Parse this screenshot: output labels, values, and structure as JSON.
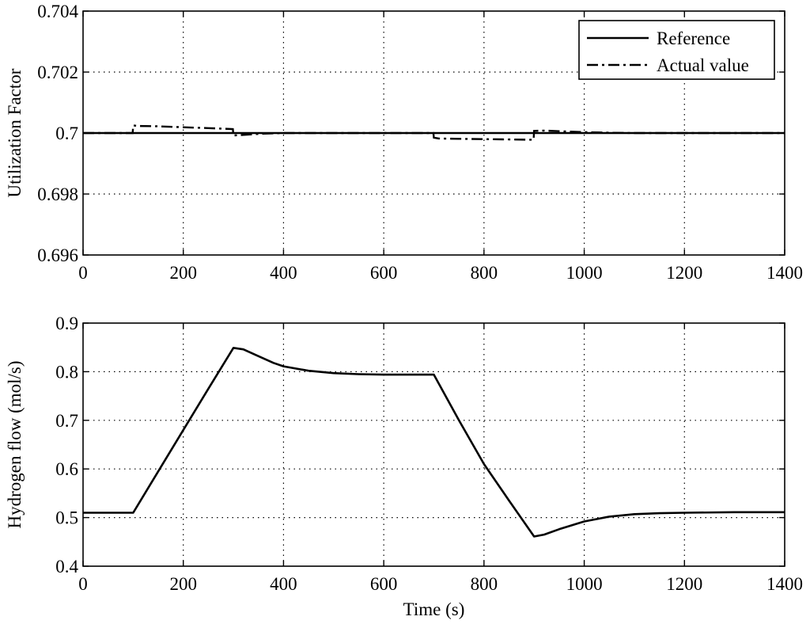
{
  "chart_data": [
    {
      "type": "line",
      "title": "",
      "xlabel": "",
      "ylabel": "Utilization Factor",
      "xlim": [
        0,
        1400
      ],
      "ylim": [
        0.696,
        0.704
      ],
      "xticks": [
        0,
        200,
        400,
        600,
        800,
        1000,
        1200,
        1400
      ],
      "xtick_labels": [
        "0",
        "200",
        "400",
        "600",
        "800",
        "1000",
        "1200",
        "1400"
      ],
      "yticks": [
        0.696,
        0.698,
        0.7,
        0.702,
        0.704
      ],
      "ytick_labels": [
        "0.696",
        "0.698",
        "0.7",
        "0.702",
        "0.704"
      ],
      "grid": true,
      "legend_position": "top-right",
      "series": [
        {
          "name": "Reference",
          "style": "solid",
          "x": [
            0,
            1400
          ],
          "y": [
            0.7,
            0.7
          ]
        },
        {
          "name": "Actual value",
          "style": "dash-dot",
          "x": [
            0,
            99,
            100,
            110,
            150,
            200,
            250,
            299,
            300,
            330,
            360,
            400,
            450,
            500,
            600,
            699,
            700,
            710,
            750,
            800,
            850,
            899,
            900,
            920,
            950,
            1000,
            1050,
            1100,
            1200,
            1300,
            1400
          ],
          "y": [
            0.7,
            0.7,
            0.70025,
            0.70023,
            0.70022,
            0.70019,
            0.70016,
            0.70013,
            0.69992,
            0.69995,
            0.69998,
            0.7,
            0.7,
            0.7,
            0.7,
            0.7,
            0.69985,
            0.69982,
            0.69981,
            0.6998,
            0.69979,
            0.69978,
            0.70007,
            0.70008,
            0.70006,
            0.70003,
            0.70001,
            0.7,
            0.7,
            0.7,
            0.7
          ]
        }
      ]
    },
    {
      "type": "line",
      "title": "",
      "xlabel": "Time (s)",
      "ylabel": "Hydrogen flow (mol/s)",
      "xlim": [
        0,
        1400
      ],
      "ylim": [
        0.4,
        0.9
      ],
      "xticks": [
        0,
        200,
        400,
        600,
        800,
        1000,
        1200,
        1400
      ],
      "xtick_labels": [
        "0",
        "200",
        "400",
        "600",
        "800",
        "1000",
        "1200",
        "1400"
      ],
      "yticks": [
        0.4,
        0.5,
        0.6,
        0.7,
        0.8,
        0.9
      ],
      "ytick_labels": [
        "0.4",
        "0.5",
        "0.6",
        "0.7",
        "0.8",
        "0.9"
      ],
      "grid": true,
      "series": [
        {
          "x": [
            0,
            100,
            150,
            200,
            250,
            300,
            320,
            350,
            380,
            400,
            450,
            500,
            550,
            600,
            650,
            700,
            750,
            800,
            850,
            900,
            920,
            950,
            1000,
            1050,
            1100,
            1150,
            1200,
            1300,
            1400
          ],
          "y": [
            0.51,
            0.51,
            0.595,
            0.68,
            0.765,
            0.849,
            0.846,
            0.832,
            0.818,
            0.811,
            0.802,
            0.797,
            0.795,
            0.794,
            0.794,
            0.794,
            0.7,
            0.61,
            0.535,
            0.461,
            0.465,
            0.476,
            0.492,
            0.502,
            0.507,
            0.509,
            0.51,
            0.511,
            0.511
          ]
        }
      ]
    }
  ]
}
